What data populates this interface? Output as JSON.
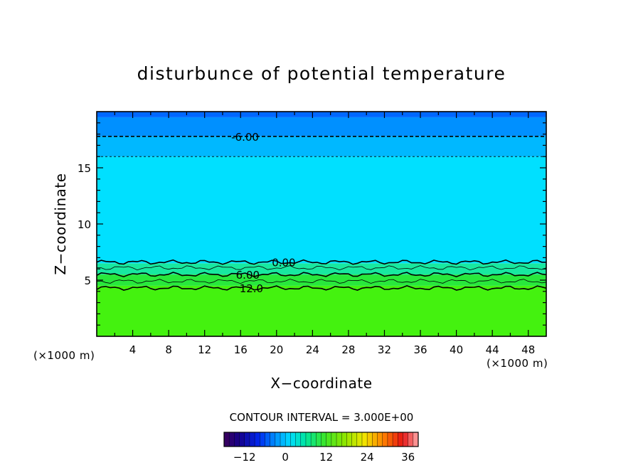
{
  "chart_data": {
    "type": "heatmap",
    "title": "disturbunce of potential temperature",
    "xlabel": "X−coordinate",
    "ylabel": "Z−coordinate",
    "x_unit": "(×1000 m)",
    "x_unit_right": "(×1000 m)",
    "xlim": [
      0,
      50
    ],
    "ylim": [
      0,
      20
    ],
    "x_ticks": [
      4,
      8,
      12,
      16,
      20,
      24,
      28,
      32,
      36,
      40,
      44,
      48
    ],
    "y_ticks": [
      5,
      10,
      15
    ],
    "contour_interval_label": "CONTOUR INTERVAL = 3.000E+00",
    "contour_interval": 3.0,
    "field_bands": [
      {
        "z": [
          0,
          4.5
        ],
        "value": 13.5,
        "color": "#44f20f"
      },
      {
        "z": [
          4.5,
          5.5
        ],
        "value": 10.5,
        "color": "#28e83c"
      },
      {
        "z": [
          5.5,
          6.5
        ],
        "value": 4.5,
        "color": "#18e8a0"
      },
      {
        "z": [
          6.5,
          16
        ],
        "value": -1.5,
        "color": "#00e0ff"
      },
      {
        "z": [
          16,
          17.8
        ],
        "value": -4.5,
        "color": "#00b8ff"
      },
      {
        "z": [
          17.8,
          19.5
        ],
        "value": -7.5,
        "color": "#0090ff"
      },
      {
        "z": [
          19.5,
          20
        ],
        "value": -10.5,
        "color": "#0068ff"
      }
    ],
    "contours": [
      {
        "level": -6.0,
        "z": 17.8,
        "style": "dashed",
        "label": "-6.00",
        "label_x": 16.5
      },
      {
        "level": -3.0,
        "z": 16.0,
        "style": "dashed-thin",
        "label": ""
      },
      {
        "level": 0.0,
        "z": 6.6,
        "style": "solid",
        "label": "0.00",
        "label_x": 20.8
      },
      {
        "level": 3.0,
        "z": 6.1,
        "style": "solid-thin",
        "label": ""
      },
      {
        "level": 6.0,
        "z": 5.5,
        "style": "solid",
        "label": "6.00",
        "label_x": 16.8
      },
      {
        "level": 9.0,
        "z": 4.9,
        "style": "solid-thin",
        "label": ""
      },
      {
        "level": 12.0,
        "z": 4.3,
        "style": "solid",
        "label": "12.0",
        "label_x": 17.2
      }
    ],
    "colorbar": {
      "range": [
        -18,
        39
      ],
      "ticks": [
        -12,
        0,
        12,
        24,
        36
      ]
    }
  }
}
